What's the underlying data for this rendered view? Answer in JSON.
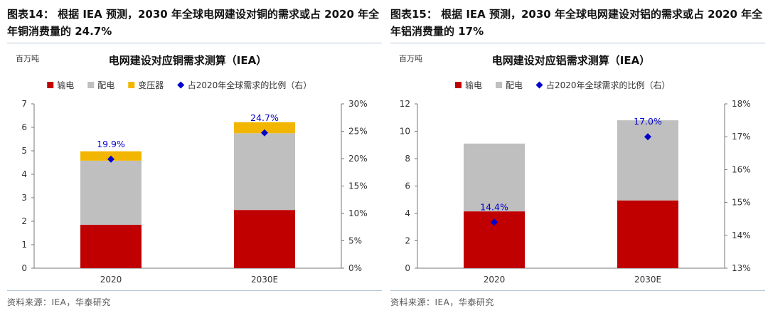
{
  "colors": {
    "transmission": "#c00000",
    "distribution": "#bfbfbf",
    "transformer": "#f2b600",
    "ratio": "#0000cc"
  },
  "panels": [
    {
      "fig_title": "图表14：  根据 IEA 预测，2030 年全球电网建设对铜的需求或占 2020 年全年铜消费量的 24.7%",
      "source": "资料来源：IEA，华泰研究"
    },
    {
      "fig_title": "图表15：  根据 IEA 预测，2030 年全球电网建设对铝的需求或占 2020 年全年铝消费量的 17%",
      "source": "资料来源：IEA，华泰研究"
    }
  ],
  "chart_data": [
    {
      "type": "bar",
      "stacked": true,
      "title": "电网建设对应铜需求测算（IEA）",
      "unit_label": "百万吨",
      "categories": [
        "2020",
        "2030E"
      ],
      "series": [
        {
          "name": "输电",
          "values": [
            1.85,
            2.48
          ]
        },
        {
          "name": "配电",
          "values": [
            2.73,
            3.27
          ]
        },
        {
          "name": "变压器",
          "values": [
            0.4,
            0.47
          ]
        }
      ],
      "secondary": {
        "name": "占2020年全球需求的比例（右）",
        "values": [
          19.9,
          24.7
        ],
        "labels": [
          "19.9%",
          "24.7%"
        ]
      },
      "ylim": [
        0,
        7
      ],
      "yticks": [
        "0",
        "1",
        "2",
        "3",
        "4",
        "5",
        "6",
        "7"
      ],
      "y2lim": [
        0,
        30
      ],
      "y2ticks": [
        "0%",
        "5%",
        "10%",
        "15%",
        "20%",
        "25%",
        "30%"
      ],
      "legend_position": "top"
    },
    {
      "type": "bar",
      "stacked": true,
      "title": "电网建设对应铝需求测算（IEA）",
      "unit_label": "百万吨",
      "categories": [
        "2020",
        "2030E"
      ],
      "series": [
        {
          "name": "输电",
          "values": [
            4.15,
            4.95
          ]
        },
        {
          "name": "配电",
          "values": [
            4.95,
            5.85
          ]
        }
      ],
      "secondary": {
        "name": "占2020年全球需求的比例（右）",
        "values": [
          14.4,
          17.0
        ],
        "labels": [
          "14.4%",
          "17.0%"
        ]
      },
      "ylim": [
        0,
        12
      ],
      "yticks": [
        "0",
        "2",
        "4",
        "6",
        "8",
        "10",
        "12"
      ],
      "y2lim": [
        13,
        18
      ],
      "y2ticks": [
        "13%",
        "14%",
        "15%",
        "16%",
        "17%",
        "18%"
      ],
      "legend_position": "top"
    }
  ]
}
